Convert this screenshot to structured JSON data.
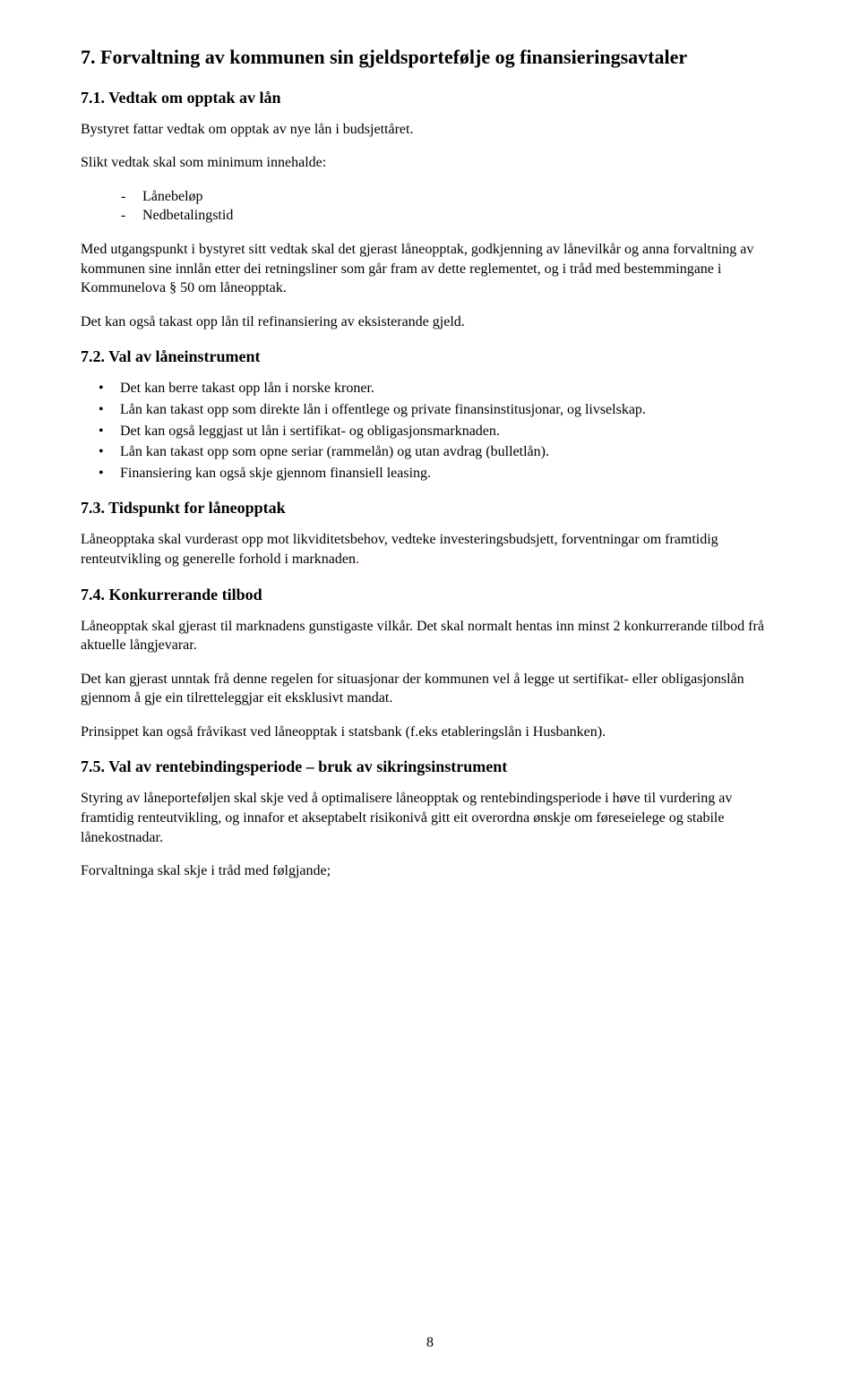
{
  "section": {
    "number": "7.",
    "title": "Forvaltning av kommunen sin gjeldsportefølje og finansieringsavtaler"
  },
  "s71": {
    "heading": "7.1. Vedtak om opptak av lån",
    "p1": "Bystyret fattar vedtak om opptak av nye lån i budsjettåret.",
    "p2": "Slikt vedtak skal som minimum innehalde:",
    "items": [
      "Lånebeløp",
      "Nedbetalingstid"
    ],
    "p3": "Med utgangspunkt i bystyret sitt vedtak skal det gjerast låneopptak, godkjenning av lånevilkår og anna forvaltning av kommunen sine innlån etter dei retningsliner som går fram av dette reglementet, og i tråd med bestemmingane i Kommunelova § 50 om låneopptak.",
    "p4": "Det kan også takast opp lån til refinansiering av eksisterande gjeld."
  },
  "s72": {
    "heading": "7.2. Val av låneinstrument",
    "items": [
      "Det kan berre takast opp lån i norske kroner.",
      "Lån kan takast opp som direkte lån i offentlege og private finansinstitusjonar, og livselskap.",
      "Det kan også leggjast ut lån i sertifikat- og obligasjonsmarknaden.",
      "Lån kan takast opp som opne seriar (rammelån) og utan avdrag (bulletlån).",
      "Finansiering kan også skje gjennom finansiell leasing."
    ]
  },
  "s73": {
    "heading": "7.3. Tidspunkt for låneopptak",
    "p1_black": "Låneopptaka skal vurderast opp mot likviditetsbehov, vedteke investeringsbudsjett, forventningar om framtidig renteutvikling og generelle forhold i marknaden",
    "p1_red": "."
  },
  "s74": {
    "heading": "7.4. Konkurrerande tilbod",
    "p1": "Låneopptak skal gjerast til marknadens gunstigaste vilkår. Det skal normalt hentas inn minst 2 konkurrerande tilbod frå aktuelle långjevarar.",
    "p2": "Det kan gjerast unntak frå denne regelen for situasjonar der kommunen vel å legge ut sertifikat- eller obligasjonslån gjennom å gje ein tilretteleggjar eit eksklusivt mandat.",
    "p3": "Prinsippet kan også fråvikast ved låneopptak i statsbank (f.eks etableringslån i Husbanken)."
  },
  "s75": {
    "heading": "7.5. Val av rentebindingsperiode – bruk av sikringsinstrument",
    "p1": "Styring av låneporteføljen skal skje ved å optimalisere låneopptak og rentebindingsperiode i høve til vurdering av framtidig renteutvikling, og innafor et akseptabelt risikonivå gitt eit overordna ønskje om føreseielege og stabile lånekostnadar.",
    "p2": "Forvaltninga skal skje i tråd med følgjande;"
  },
  "pageNumber": "8"
}
